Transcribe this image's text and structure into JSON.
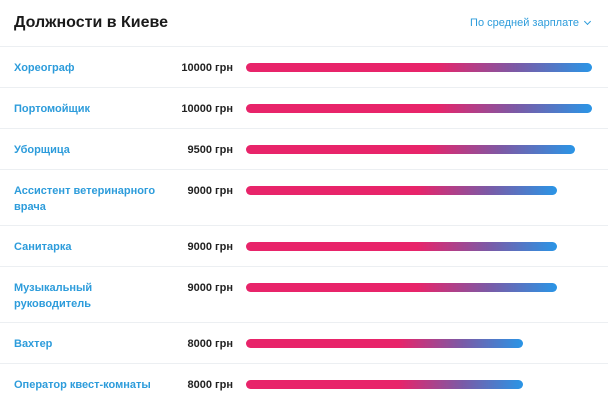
{
  "header": {
    "title": "Должности в Киеве",
    "sort_label": "По средней зарплате"
  },
  "jobs": [
    {
      "name": "Хореограф",
      "salary": "10000 грн",
      "value": 10000
    },
    {
      "name": "Портомойщик",
      "salary": "10000 грн",
      "value": 10000
    },
    {
      "name": "Уборщица",
      "salary": "9500 грн",
      "value": 9500
    },
    {
      "name": "Ассистент ветеринарного врача",
      "salary": "9000 грн",
      "value": 9000
    },
    {
      "name": "Санитарка",
      "salary": "9000 грн",
      "value": 9000
    },
    {
      "name": "Музыкальный руководитель",
      "salary": "9000 грн",
      "value": 9000
    },
    {
      "name": "Вахтер",
      "salary": "8000 грн",
      "value": 8000
    },
    {
      "name": "Оператор квест-комнаты",
      "salary": "8000 грн",
      "value": 8000
    }
  ],
  "colors": {
    "accent": "#2d9cdb",
    "bar_start": "#e8246a",
    "bar_end": "#2a95e6"
  }
}
